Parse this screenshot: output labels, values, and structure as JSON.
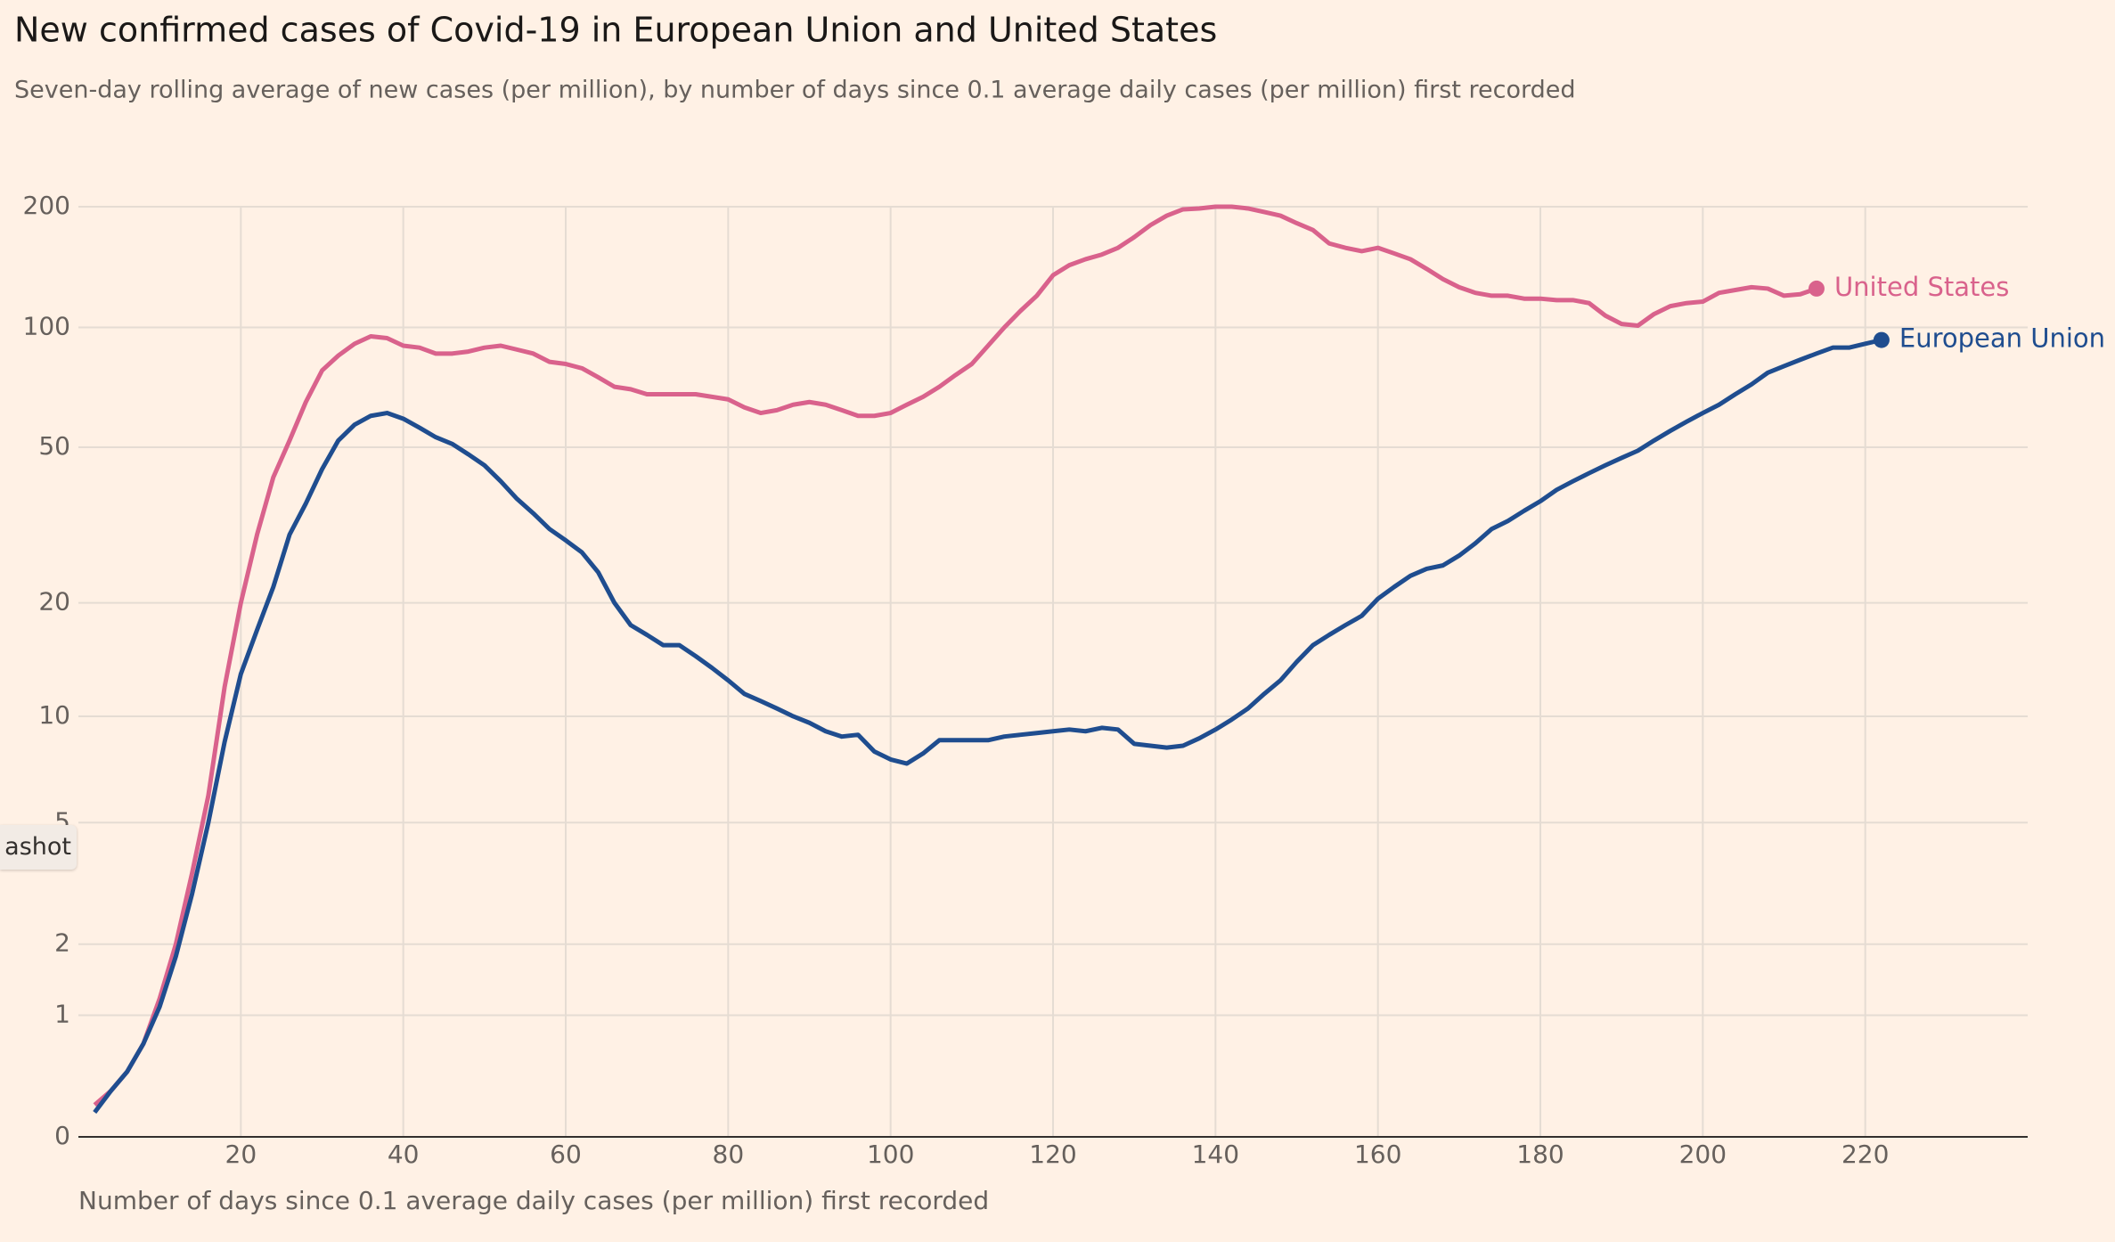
{
  "chart_data": {
    "type": "line",
    "title": "New confirmed cases of Covid-19 in European Union and United States",
    "subtitle": "Seven-day rolling average of new cases (per million), by number of days since 0.1 average daily cases (per million) first recorded",
    "x_label": "Number of days since 0.1 average daily cases (per million) first recorded",
    "yscale": "log1p",
    "xlim": [
      0,
      240
    ],
    "xticks": [
      20,
      40,
      60,
      80,
      100,
      120,
      140,
      160,
      180,
      200,
      220
    ],
    "ylim": [
      0,
      200
    ],
    "yticks": [
      0,
      1,
      2,
      5,
      10,
      20,
      50,
      100,
      200
    ],
    "grid": true,
    "x": [
      2,
      4,
      6,
      8,
      10,
      12,
      14,
      16,
      18,
      20,
      22,
      24,
      26,
      28,
      30,
      32,
      34,
      36,
      38,
      40,
      42,
      44,
      46,
      48,
      50,
      52,
      54,
      56,
      58,
      60,
      62,
      64,
      66,
      68,
      70,
      72,
      74,
      76,
      78,
      80,
      82,
      84,
      86,
      88,
      90,
      92,
      94,
      96,
      98,
      100,
      102,
      104,
      106,
      108,
      110,
      112,
      114,
      116,
      118,
      120,
      122,
      124,
      126,
      128,
      130,
      132,
      134,
      136,
      138,
      140,
      142,
      144,
      146,
      148,
      150,
      152,
      154,
      156,
      158,
      160,
      162,
      164,
      166,
      168,
      170,
      172,
      174,
      176,
      178,
      180,
      182,
      184,
      186,
      188,
      190,
      192,
      194,
      196,
      198,
      200,
      202,
      204,
      206,
      208,
      210,
      212,
      214,
      216,
      218,
      220,
      222
    ],
    "series": [
      {
        "name": "United States",
        "color": "#d9628c",
        "values": [
          0.2,
          0.3,
          0.45,
          0.7,
          1.2,
          2,
          3.5,
          6,
          12,
          20,
          30,
          42,
          52,
          65,
          78,
          85,
          91,
          95,
          94,
          90,
          89,
          86,
          86,
          87,
          89,
          90,
          88,
          86,
          82,
          81,
          79,
          75,
          71,
          70,
          68,
          68,
          68,
          68,
          67,
          66,
          63,
          61,
          62,
          64,
          65,
          64,
          62,
          60,
          60,
          61,
          64,
          67,
          71,
          76,
          81,
          90,
          100,
          110,
          120,
          135,
          143,
          148,
          152,
          158,
          168,
          180,
          190,
          197,
          198,
          200,
          200,
          198,
          194,
          190,
          182,
          175,
          162,
          158,
          155,
          158,
          153,
          148,
          140,
          132,
          126,
          122,
          120,
          120,
          118,
          118,
          117,
          117,
          115,
          107,
          102,
          101,
          108,
          113,
          115,
          116,
          122,
          124,
          126,
          125,
          120,
          121,
          125,
          null,
          null,
          null,
          null
        ]
      },
      {
        "name": "European Union",
        "color": "#1f4d8f",
        "values": [
          0.15,
          0.3,
          0.45,
          0.7,
          1.1,
          1.8,
          3,
          5,
          8.5,
          13,
          17,
          22,
          30,
          36,
          44,
          52,
          57,
          60,
          61,
          59,
          56,
          53,
          51,
          48,
          45,
          41,
          37,
          34,
          31,
          29,
          27,
          24,
          20,
          17.5,
          16.5,
          15.5,
          15.5,
          14.5,
          13.5,
          12.5,
          11.5,
          11,
          10.5,
          10,
          9.6,
          9.1,
          8.8,
          8.9,
          8,
          7.6,
          7.4,
          7.9,
          8.6,
          8.6,
          8.6,
          8.6,
          8.8,
          8.9,
          9,
          9.1,
          9.2,
          9.1,
          9.3,
          9.2,
          8.4,
          8.3,
          8.2,
          8.3,
          8.7,
          9.2,
          9.8,
          10.5,
          11.5,
          12.5,
          14,
          15.5,
          16.5,
          17.5,
          18.5,
          20.5,
          22,
          23.5,
          24.5,
          25,
          26.5,
          28.5,
          31,
          32.5,
          34.5,
          36.5,
          39,
          41,
          43,
          45,
          47,
          49,
          52,
          55,
          58,
          61,
          64,
          68,
          72,
          77,
          80,
          83,
          86,
          89,
          89,
          91,
          93
        ]
      }
    ]
  },
  "ui": {
    "snapshot_button": "ashot"
  }
}
